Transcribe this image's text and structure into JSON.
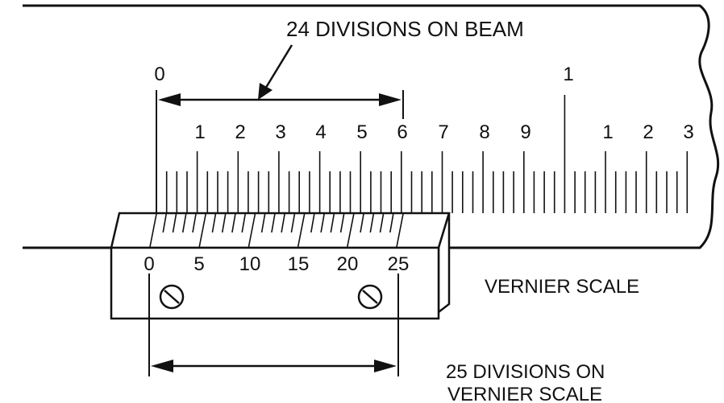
{
  "labels": {
    "beam_callout": "24 DIVISIONS ON BEAM",
    "vernier_name": "VERNIER SCALE",
    "vernier_callout_line1": "25 DIVISIONS ON",
    "vernier_callout_line2": "VERNIER SCALE"
  },
  "beam": {
    "major_labels": [
      "0",
      "1"
    ],
    "minor_labels": [
      "1",
      "2",
      "3",
      "4",
      "5",
      "6",
      "7",
      "8",
      "9",
      "1",
      "2",
      "3"
    ]
  },
  "vernier": {
    "labels": [
      "0",
      "5",
      "10",
      "15",
      "20",
      "25"
    ]
  },
  "colors": {
    "ink": "#111111",
    "paper": "#ffffff"
  }
}
